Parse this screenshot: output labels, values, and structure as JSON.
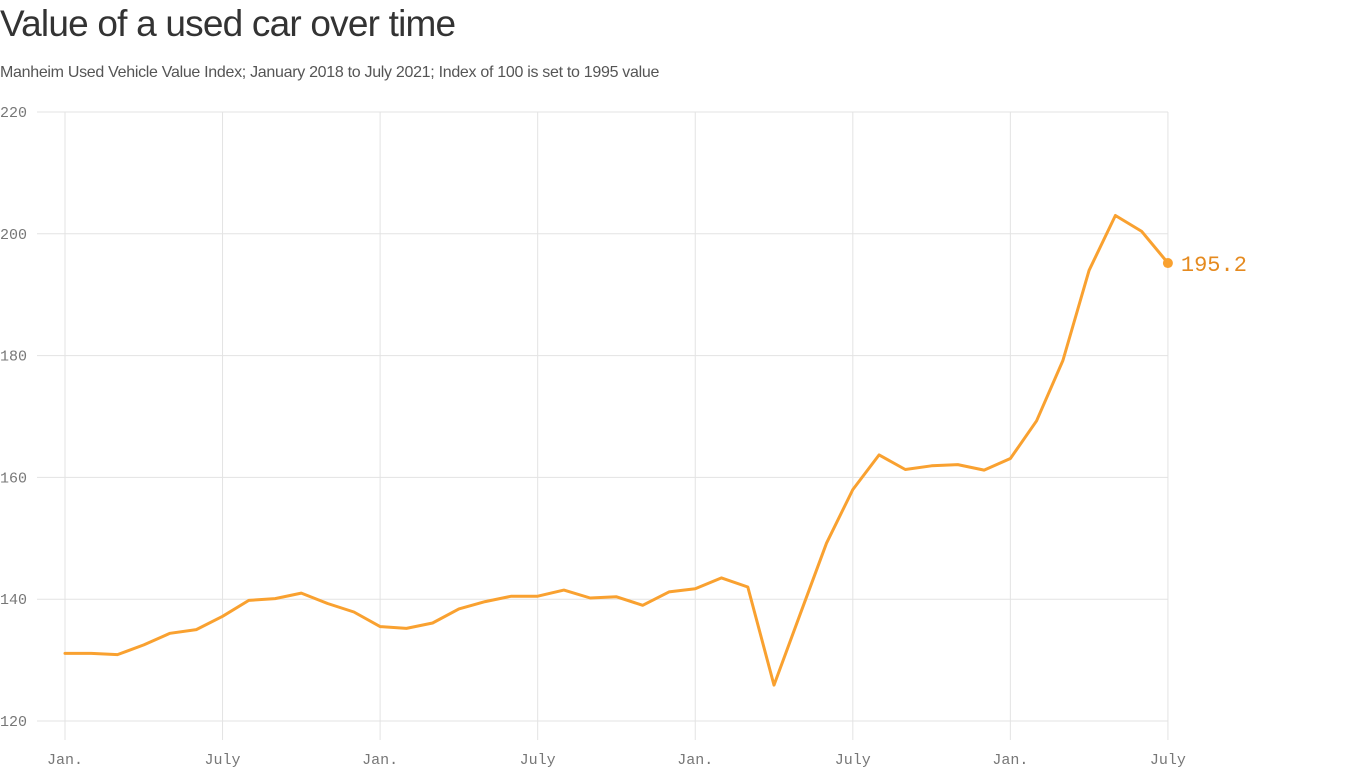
{
  "header": {
    "title": "Value of a used car over time",
    "subtitle": "Manheim Used Vehicle Value Index; January 2018 to July 2021; Index of 100 is set to 1995 value"
  },
  "colors": {
    "line": "#f9a130",
    "end_label": "#e58a1f",
    "grid": "#e3e3e3",
    "tick_text": "#777777"
  },
  "chart_data": {
    "type": "line",
    "title": "Value of a used car over time",
    "subtitle": "Manheim Used Vehicle Value Index; January 2018 to July 2021; Index of 100 is set to 1995 value",
    "xlabel": "",
    "ylabel": "",
    "ylim": [
      120,
      220
    ],
    "yticks": [
      120,
      140,
      160,
      180,
      200,
      220
    ],
    "xticks": [
      {
        "label": "Jan.",
        "month_index": 0
      },
      {
        "label": "July",
        "month_index": 6
      },
      {
        "label": "Jan.",
        "month_index": 12
      },
      {
        "label": "July",
        "month_index": 18
      },
      {
        "label": "Jan.",
        "month_index": 24
      },
      {
        "label": "July",
        "month_index": 30
      },
      {
        "label": "Jan.",
        "month_index": 36
      },
      {
        "label": "July",
        "month_index": 42
      }
    ],
    "grid": true,
    "legend": "none",
    "annotation": {
      "label": "195.2",
      "x": "2021-07",
      "value": 195.2
    },
    "x": [
      "2018-01",
      "2018-02",
      "2018-03",
      "2018-04",
      "2018-05",
      "2018-06",
      "2018-07",
      "2018-08",
      "2018-09",
      "2018-10",
      "2018-11",
      "2018-12",
      "2019-01",
      "2019-02",
      "2019-03",
      "2019-04",
      "2019-05",
      "2019-06",
      "2019-07",
      "2019-08",
      "2019-09",
      "2019-10",
      "2019-11",
      "2019-12",
      "2020-01",
      "2020-02",
      "2020-03",
      "2020-04",
      "2020-05",
      "2020-06",
      "2020-07",
      "2020-08",
      "2020-09",
      "2020-10",
      "2020-11",
      "2020-12",
      "2021-01",
      "2021-02",
      "2021-03",
      "2021-04",
      "2021-05",
      "2021-06",
      "2021-07"
    ],
    "series": [
      {
        "name": "Manheim Used Vehicle Value Index",
        "values": [
          131.1,
          131.1,
          130.9,
          132.5,
          134.4,
          135.0,
          137.2,
          139.8,
          140.1,
          141.0,
          139.3,
          137.9,
          135.5,
          135.2,
          136.1,
          138.4,
          139.6,
          140.5,
          140.5,
          141.5,
          140.2,
          140.4,
          139.0,
          141.2,
          141.7,
          143.5,
          142.0,
          125.9,
          137.6,
          149.2,
          158.0,
          163.7,
          161.3,
          161.9,
          162.1,
          161.2,
          163.1,
          169.3,
          179.2,
          194.0,
          203.0,
          200.4,
          195.2
        ]
      }
    ]
  }
}
